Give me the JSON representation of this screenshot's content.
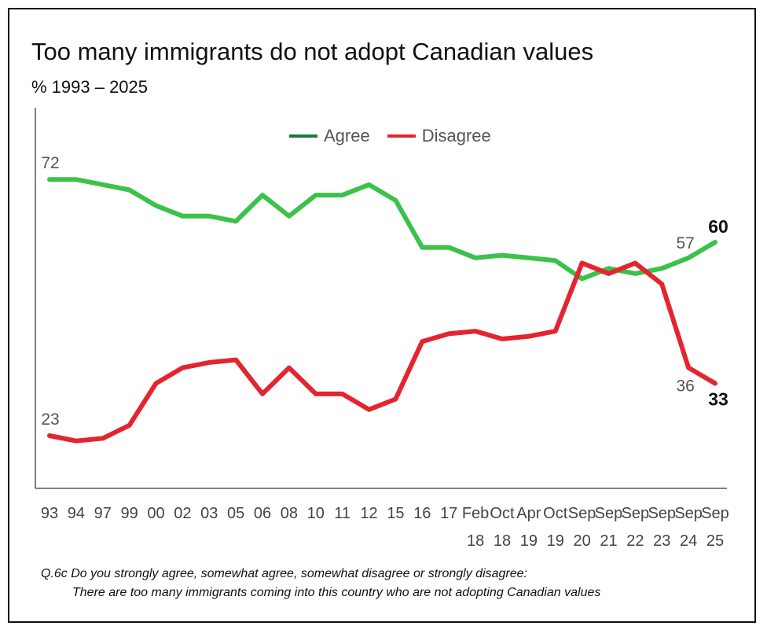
{
  "title": "Too many immigrants do not adopt Canadian values",
  "subtitle": "%  1993 – 2025",
  "footnote": {
    "question": "Q.6c  Do you strongly agree, somewhat agree, somewhat disagree or strongly disagree:",
    "statement": "There are too many immigrants coming into this country who are not adopting Canadian values"
  },
  "colors": {
    "agree": "#3cc24b",
    "disagree": "#e4252f",
    "agree_legend": "#1a7a3a"
  },
  "chart_data": {
    "type": "line",
    "title": "Too many immigrants do not adopt Canadian values",
    "ylabel": "%",
    "ylim": [
      0,
      100
    ],
    "categories": [
      {
        "l1": "93",
        "l2": ""
      },
      {
        "l1": "94",
        "l2": ""
      },
      {
        "l1": "97",
        "l2": ""
      },
      {
        "l1": "99",
        "l2": ""
      },
      {
        "l1": "00",
        "l2": ""
      },
      {
        "l1": "02",
        "l2": ""
      },
      {
        "l1": "03",
        "l2": ""
      },
      {
        "l1": "05",
        "l2": ""
      },
      {
        "l1": "06",
        "l2": ""
      },
      {
        "l1": "08",
        "l2": ""
      },
      {
        "l1": "10",
        "l2": ""
      },
      {
        "l1": "11",
        "l2": ""
      },
      {
        "l1": "12",
        "l2": ""
      },
      {
        "l1": "15",
        "l2": ""
      },
      {
        "l1": "16",
        "l2": ""
      },
      {
        "l1": "17",
        "l2": ""
      },
      {
        "l1": "Feb",
        "l2": "18"
      },
      {
        "l1": "Oct",
        "l2": "18"
      },
      {
        "l1": "Apr",
        "l2": "19"
      },
      {
        "l1": "Oct",
        "l2": "19"
      },
      {
        "l1": "Sep",
        "l2": "20"
      },
      {
        "l1": "Sep",
        "l2": "21"
      },
      {
        "l1": "Sep",
        "l2": "22"
      },
      {
        "l1": "Sep",
        "l2": "23"
      },
      {
        "l1": "Sep",
        "l2": "24"
      },
      {
        "l1": "Sep",
        "l2": "25"
      }
    ],
    "series": [
      {
        "name": "Agree",
        "key": "agree",
        "values": [
          72,
          72,
          71,
          70,
          67,
          65,
          65,
          64,
          69,
          65,
          69,
          69,
          71,
          68,
          59,
          59,
          57,
          57.5,
          57,
          56.5,
          53,
          55,
          54,
          55,
          57,
          60
        ]
      },
      {
        "name": "Disagree",
        "key": "disagree",
        "values": [
          23,
          22,
          22.5,
          25,
          33,
          36,
          37,
          37.5,
          31,
          36,
          31,
          31,
          28,
          30,
          41,
          42.5,
          43,
          41.5,
          42,
          43,
          56,
          54,
          56,
          52,
          36,
          33
        ]
      }
    ],
    "data_labels": [
      {
        "series": "agree",
        "index": 0,
        "text": "72",
        "bold": false
      },
      {
        "series": "agree",
        "index": 24,
        "text": "57",
        "bold": false
      },
      {
        "series": "agree",
        "index": 25,
        "text": "60",
        "bold": true
      },
      {
        "series": "disagree",
        "index": 0,
        "text": "23",
        "bold": false
      },
      {
        "series": "disagree",
        "index": 24,
        "text": "36",
        "bold": false
      },
      {
        "series": "disagree",
        "index": 25,
        "text": "33",
        "bold": true
      }
    ]
  }
}
